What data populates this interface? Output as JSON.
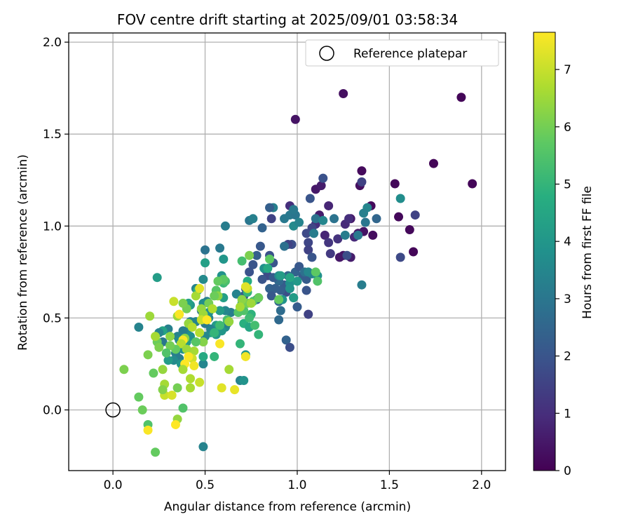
{
  "chart_data": {
    "type": "scatter",
    "title": "FOV centre drift starting at 2025/09/01 03:58:34",
    "xlabel": "Angular distance from reference (arcmin)",
    "ylabel": "Rotation from reference (arcmin)",
    "xlim": [
      -0.24,
      2.13
    ],
    "ylim": [
      -0.33,
      2.05
    ],
    "xticks": [
      0.0,
      0.5,
      1.0,
      1.5,
      2.0
    ],
    "xtick_labels": [
      "0.0",
      "0.5",
      "1.0",
      "1.5",
      "2.0"
    ],
    "yticks": [
      0.0,
      0.5,
      1.0,
      1.5,
      2.0
    ],
    "ytick_labels": [
      "0.0",
      "0.5",
      "1.0",
      "1.5",
      "2.0"
    ],
    "grid": true,
    "legend": {
      "position": "top-right",
      "entries": [
        "Reference platepar"
      ]
    },
    "reference_point": {
      "x": 0.0,
      "y": 0.0,
      "marker": "open-circle",
      "color": "#000000"
    },
    "colorbar": {
      "label": "Hours from first FF file",
      "range": [
        0,
        7.65
      ],
      "ticks": [
        0,
        1,
        2,
        3,
        4,
        5,
        6,
        7
      ],
      "tick_labels": [
        "0",
        "1",
        "2",
        "3",
        "4",
        "5",
        "6",
        "7"
      ],
      "colormap": "viridis"
    },
    "points": [
      [
        1.89,
        1.7,
        0.1
      ],
      [
        1.95,
        1.23,
        0.1
      ],
      [
        1.74,
        1.34,
        0.1
      ],
      [
        1.63,
        0.86,
        0.1
      ],
      [
        1.61,
        0.98,
        0.15
      ],
      [
        1.53,
        1.23,
        0.15
      ],
      [
        1.55,
        1.05,
        0.15
      ],
      [
        1.4,
        1.11,
        0.2
      ],
      [
        1.41,
        0.95,
        0.25
      ],
      [
        1.35,
        1.3,
        0.2
      ],
      [
        1.34,
        1.22,
        0.3
      ],
      [
        1.36,
        0.97,
        0.4
      ],
      [
        1.25,
        1.72,
        0.3
      ],
      [
        1.25,
        0.84,
        0.4
      ],
      [
        1.23,
        0.83,
        0.5
      ],
      [
        1.29,
        0.83,
        0.6
      ],
      [
        1.29,
        1.04,
        0.5
      ],
      [
        1.33,
        0.96,
        0.5
      ],
      [
        0.99,
        1.58,
        0.4
      ],
      [
        1.1,
        1.2,
        0.5
      ],
      [
        1.13,
        1.22,
        0.6
      ],
      [
        1.12,
        1.06,
        0.6
      ],
      [
        1.17,
        1.11,
        0.8
      ],
      [
        1.15,
        0.95,
        0.8
      ],
      [
        1.26,
        1.01,
        0.9
      ],
      [
        1.22,
        0.93,
        1.1
      ],
      [
        1.28,
        1.04,
        1.0
      ],
      [
        1.31,
        0.94,
        0.9
      ],
      [
        1.35,
        1.24,
        1.5
      ],
      [
        1.64,
        1.06,
        1.5
      ],
      [
        1.56,
        0.83,
        1.7
      ],
      [
        1.27,
        0.84,
        1.8
      ],
      [
        1.17,
        0.91,
        1.2
      ],
      [
        1.18,
        0.85,
        1.3
      ],
      [
        1.1,
        1.01,
        1.0
      ],
      [
        1.08,
        0.99,
        1.6
      ],
      [
        1.14,
        1.26,
        1.9
      ],
      [
        1.07,
        1.15,
        2.0
      ],
      [
        0.96,
        1.11,
        1.0
      ],
      [
        0.97,
        0.9,
        1.8
      ],
      [
        1.05,
        0.96,
        1.7
      ],
      [
        0.95,
        0.9,
        1.5
      ],
      [
        0.86,
        1.04,
        1.5
      ],
      [
        1.06,
        0.91,
        1.6
      ],
      [
        1.06,
        0.87,
        1.5
      ],
      [
        1.08,
        0.83,
        2.0
      ],
      [
        1.05,
        0.71,
        2.2
      ],
      [
        1.05,
        0.65,
        2.0
      ],
      [
        1.03,
        0.73,
        2.2
      ],
      [
        0.99,
        0.75,
        2.4
      ],
      [
        1.01,
        0.78,
        2.1
      ],
      [
        0.98,
        0.61,
        2.4
      ],
      [
        1.0,
        0.56,
        2.2
      ],
      [
        1.06,
        0.52,
        1.5
      ],
      [
        0.94,
        0.64,
        1.8
      ],
      [
        0.95,
        0.73,
        2.5
      ],
      [
        0.93,
        0.68,
        2.2
      ],
      [
        0.9,
        0.7,
        2.6
      ],
      [
        0.91,
        0.65,
        2.3
      ],
      [
        0.9,
        0.59,
        2.5
      ],
      [
        0.91,
        0.54,
        2.7
      ],
      [
        0.9,
        0.49,
        2.6
      ],
      [
        0.94,
        0.38,
        2.4
      ],
      [
        0.96,
        0.34,
        1.8
      ],
      [
        0.87,
        0.8,
        2.0
      ],
      [
        0.84,
        0.73,
        1.7
      ],
      [
        0.85,
        0.66,
        2.4
      ],
      [
        0.85,
        0.84,
        1.9
      ],
      [
        0.87,
        0.72,
        2.2
      ],
      [
        0.88,
        0.66,
        2.3
      ],
      [
        0.83,
        0.76,
        1.8
      ],
      [
        0.81,
        0.71,
        2.0
      ],
      [
        0.86,
        0.62,
        2.1
      ],
      [
        0.78,
        0.6,
        2.4
      ],
      [
        0.8,
        0.89,
        2.1
      ],
      [
        0.78,
        0.84,
        2.3
      ],
      [
        0.76,
        0.79,
        2.0
      ],
      [
        0.74,
        0.75,
        1.9
      ],
      [
        0.71,
        0.62,
        2.2
      ],
      [
        0.72,
        0.66,
        2.1
      ],
      [
        0.74,
        1.03,
        3.0
      ],
      [
        0.76,
        1.04,
        3.3
      ],
      [
        0.81,
        0.99,
        2.4
      ],
      [
        0.87,
        1.1,
        3.3
      ],
      [
        0.93,
        1.04,
        3.1
      ],
      [
        0.96,
        1.06,
        3.1
      ],
      [
        0.99,
        1.06,
        3.0
      ],
      [
        0.98,
        1.09,
        3.1
      ],
      [
        0.98,
        1.0,
        3.6
      ],
      [
        1.01,
        1.02,
        3.4
      ],
      [
        1.1,
        1.04,
        2.9
      ],
      [
        1.09,
        0.96,
        3.2
      ],
      [
        1.14,
        1.03,
        3.5
      ],
      [
        1.2,
        1.04,
        2.9
      ],
      [
        1.26,
        0.95,
        3.2
      ],
      [
        1.33,
        0.95,
        3.1
      ],
      [
        1.37,
        1.02,
        3.0
      ],
      [
        1.38,
        1.1,
        3.5
      ],
      [
        1.36,
        1.07,
        3.3
      ],
      [
        1.43,
        1.04,
        2.5
      ],
      [
        1.35,
        0.68,
        3.2
      ],
      [
        1.56,
        1.15,
        3.7
      ],
      [
        0.85,
        1.1,
        2.3
      ],
      [
        0.93,
        0.89,
        2.8
      ],
      [
        1.04,
        0.75,
        2.8
      ],
      [
        1.08,
        0.74,
        3.4
      ],
      [
        1.11,
        0.73,
        3.8
      ],
      [
        1.06,
        0.75,
        3.5
      ],
      [
        0.9,
        0.73,
        3.6
      ],
      [
        0.92,
        0.6,
        3.9
      ],
      [
        0.96,
        0.69,
        3.8
      ],
      [
        1.0,
        0.7,
        4.1
      ],
      [
        0.96,
        0.66,
        3.9
      ],
      [
        1.11,
        0.7,
        5.5
      ],
      [
        1.1,
        0.75,
        5.7
      ],
      [
        0.91,
        0.73,
        4.2
      ],
      [
        0.96,
        0.72,
        4.5
      ],
      [
        0.98,
        0.61,
        4.2
      ],
      [
        0.9,
        0.6,
        5.8
      ],
      [
        0.82,
        0.77,
        3.8
      ],
      [
        0.79,
        0.61,
        4.5
      ],
      [
        0.73,
        0.7,
        4.7
      ],
      [
        0.73,
        0.64,
        5.0
      ],
      [
        0.71,
        0.47,
        4.8
      ],
      [
        0.7,
        0.58,
        4.4
      ],
      [
        0.75,
        0.52,
        4.9
      ],
      [
        0.74,
        0.45,
        4.5
      ],
      [
        0.74,
        0.5,
        5.2
      ],
      [
        0.77,
        0.46,
        5.3
      ],
      [
        0.79,
        0.41,
        5.0
      ],
      [
        0.76,
        0.59,
        5.4
      ],
      [
        0.79,
        0.61,
        5.9
      ],
      [
        0.85,
        0.82,
        5.7
      ],
      [
        0.84,
        0.77,
        4.6
      ],
      [
        0.69,
        0.36,
        5.0
      ],
      [
        0.69,
        0.16,
        3.4
      ],
      [
        0.71,
        0.16,
        3.9
      ],
      [
        0.72,
        0.3,
        4.0
      ],
      [
        0.67,
        0.63,
        3.4
      ],
      [
        0.64,
        0.53,
        3.2
      ],
      [
        0.61,
        0.45,
        3.6
      ],
      [
        0.59,
        0.43,
        4.0
      ],
      [
        0.62,
        0.47,
        3.3
      ],
      [
        0.61,
        0.54,
        3.5
      ],
      [
        0.58,
        0.54,
        4.2
      ],
      [
        0.6,
        0.61,
        4.3
      ],
      [
        0.56,
        0.46,
        4.2
      ],
      [
        0.56,
        0.41,
        4.0
      ],
      [
        0.53,
        0.42,
        4.4
      ],
      [
        0.52,
        0.5,
        3.5
      ],
      [
        0.52,
        0.53,
        3.8
      ],
      [
        0.53,
        0.44,
        3.4
      ],
      [
        0.5,
        0.4,
        3.5
      ],
      [
        0.5,
        0.47,
        3.1
      ],
      [
        0.51,
        0.59,
        3.3
      ],
      [
        0.48,
        0.54,
        2.9
      ],
      [
        0.49,
        0.58,
        3.7
      ],
      [
        0.5,
        0.87,
        2.9
      ],
      [
        0.49,
        0.71,
        3.6
      ],
      [
        0.5,
        0.8,
        4.3
      ],
      [
        0.58,
        0.88,
        3.1
      ],
      [
        0.6,
        0.82,
        4.0
      ],
      [
        0.61,
        1.0,
        3.2
      ],
      [
        0.59,
        0.73,
        3.9
      ],
      [
        0.6,
        0.69,
        5.1
      ],
      [
        0.61,
        0.7,
        5.4
      ],
      [
        0.56,
        0.65,
        5.6
      ],
      [
        0.6,
        0.71,
        5.7
      ],
      [
        0.45,
        0.66,
        3.4
      ],
      [
        0.46,
        0.65,
        4.9
      ],
      [
        0.42,
        0.57,
        4.0
      ],
      [
        0.41,
        0.58,
        4.3
      ],
      [
        0.4,
        0.43,
        3.6
      ],
      [
        0.42,
        0.48,
        3.4
      ],
      [
        0.45,
        0.48,
        3.4
      ],
      [
        0.42,
        0.4,
        3.8
      ],
      [
        0.4,
        0.37,
        4.1
      ],
      [
        0.38,
        0.43,
        3.2
      ],
      [
        0.35,
        0.4,
        3.4
      ],
      [
        0.36,
        0.38,
        3.6
      ],
      [
        0.38,
        0.33,
        3.9
      ],
      [
        0.34,
        0.31,
        3.3
      ],
      [
        0.36,
        0.28,
        3.2
      ],
      [
        0.33,
        0.27,
        3.6
      ],
      [
        0.37,
        0.25,
        4.0
      ],
      [
        0.3,
        0.27,
        4.2
      ],
      [
        0.27,
        0.37,
        3.0
      ],
      [
        0.3,
        0.44,
        3.3
      ],
      [
        0.27,
        0.43,
        4.4
      ],
      [
        0.25,
        0.42,
        3.4
      ],
      [
        0.24,
        0.72,
        4.2
      ],
      [
        0.14,
        0.45,
        3.4
      ],
      [
        0.49,
        -0.2,
        3.4
      ],
      [
        0.49,
        0.25,
        3.5
      ],
      [
        0.49,
        0.29,
        4.6
      ],
      [
        0.55,
        0.29,
        5.0
      ],
      [
        0.55,
        0.42,
        5.0
      ],
      [
        0.58,
        0.46,
        5.2
      ],
      [
        0.62,
        0.49,
        5.4
      ],
      [
        0.68,
        0.53,
        5.6
      ],
      [
        0.71,
        0.54,
        5.5
      ],
      [
        0.73,
        0.58,
        6.0
      ],
      [
        0.7,
        0.81,
        5.3
      ],
      [
        0.74,
        0.84,
        6.1
      ],
      [
        0.7,
        0.6,
        6.3
      ],
      [
        0.58,
        0.36,
        7.6
      ],
      [
        0.57,
        0.62,
        6.3
      ],
      [
        0.57,
        0.7,
        5.8
      ],
      [
        0.52,
        0.58,
        6.0
      ],
      [
        0.48,
        0.55,
        6.4
      ],
      [
        0.49,
        0.52,
        6.5
      ],
      [
        0.48,
        0.49,
        7.0
      ],
      [
        0.51,
        0.49,
        7.7
      ],
      [
        0.47,
        0.42,
        6.8
      ],
      [
        0.49,
        0.37,
        6.2
      ],
      [
        0.45,
        0.37,
        5.6
      ],
      [
        0.44,
        0.32,
        6.6
      ],
      [
        0.43,
        0.28,
        7.1
      ],
      [
        0.44,
        0.24,
        7.5
      ],
      [
        0.39,
        0.39,
        6.3
      ],
      [
        0.38,
        0.38,
        7.6
      ],
      [
        0.37,
        0.36,
        6.8
      ],
      [
        0.4,
        0.33,
        6.5
      ],
      [
        0.41,
        0.29,
        7.6
      ],
      [
        0.39,
        0.25,
        7.7
      ],
      [
        0.38,
        0.22,
        6.6
      ],
      [
        0.34,
        0.33,
        5.8
      ],
      [
        0.31,
        0.35,
        6.0
      ],
      [
        0.29,
        0.31,
        5.5
      ],
      [
        0.31,
        0.4,
        6.3
      ],
      [
        0.24,
        0.37,
        5.9
      ],
      [
        0.25,
        0.34,
        6.1
      ],
      [
        0.23,
        0.4,
        6.6
      ],
      [
        0.2,
        0.51,
        6.5
      ],
      [
        0.19,
        0.3,
        6.1
      ],
      [
        0.22,
        0.2,
        5.8
      ],
      [
        0.27,
        0.22,
        6.4
      ],
      [
        0.28,
        0.14,
        6.6
      ],
      [
        0.28,
        0.08,
        7.0
      ],
      [
        0.27,
        0.11,
        6.2
      ],
      [
        0.32,
        0.08,
        7.2
      ],
      [
        0.35,
        0.12,
        6.0
      ],
      [
        0.38,
        0.01,
        5.5
      ],
      [
        0.35,
        -0.05,
        6.4
      ],
      [
        0.34,
        -0.08,
        7.7
      ],
      [
        0.42,
        0.12,
        6.6
      ],
      [
        0.42,
        0.17,
        6.7
      ],
      [
        0.47,
        0.15,
        7.0
      ],
      [
        0.4,
        0.55,
        6.0
      ],
      [
        0.38,
        0.58,
        6.1
      ],
      [
        0.35,
        0.51,
        6.5
      ],
      [
        0.33,
        0.59,
        7.0
      ],
      [
        0.36,
        0.52,
        7.6
      ],
      [
        0.41,
        0.47,
        6.4
      ],
      [
        0.43,
        0.45,
        6.8
      ],
      [
        0.45,
        0.62,
        6.6
      ],
      [
        0.47,
        0.66,
        7.3
      ],
      [
        0.54,
        0.55,
        6.7
      ],
      [
        0.55,
        0.62,
        5.9
      ],
      [
        0.63,
        0.48,
        6.4
      ],
      [
        0.63,
        0.22,
        6.6
      ],
      [
        0.66,
        0.11,
        7.4
      ],
      [
        0.59,
        0.12,
        7.3
      ],
      [
        0.72,
        0.29,
        7.5
      ],
      [
        0.69,
        0.56,
        6.6
      ],
      [
        0.75,
        0.58,
        6.5
      ],
      [
        0.73,
        0.66,
        7.0
      ],
      [
        0.72,
        0.67,
        7.3
      ],
      [
        0.06,
        0.22,
        6.1
      ],
      [
        0.14,
        0.07,
        5.8
      ],
      [
        0.16,
        0.0,
        5.9
      ],
      [
        0.19,
        -0.08,
        5.5
      ],
      [
        0.19,
        -0.11,
        7.6
      ],
      [
        0.23,
        -0.23,
        5.8
      ]
    ]
  }
}
